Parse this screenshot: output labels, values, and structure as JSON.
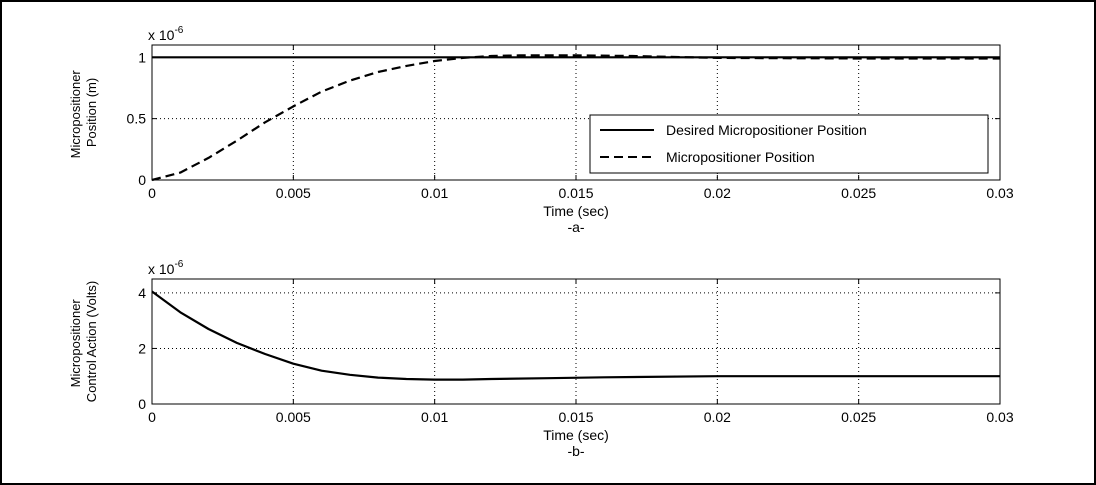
{
  "chart_data": [
    {
      "type": "line",
      "id": "a",
      "title": "",
      "caption": "-a-",
      "xlabel": "Time (sec)",
      "ylabel_lines": [
        "Micropositioner",
        "Position (m)"
      ],
      "exponent_label": "x 10",
      "exponent_power": "-6",
      "xlim": [
        0,
        0.03
      ],
      "ylim": [
        0,
        1.1
      ],
      "xticks": [
        0,
        0.005,
        0.01,
        0.015,
        0.02,
        0.025,
        0.03
      ],
      "xtick_labels": [
        "0",
        "0.005",
        "0.01",
        "0.015",
        "0.02",
        "0.025",
        "0.03"
      ],
      "yticks": [
        0,
        0.5,
        1
      ],
      "ytick_labels": [
        "0",
        "0.5",
        "1"
      ],
      "grid": true,
      "legend_position": "right",
      "series": [
        {
          "name": "Desired Micropositioner Position",
          "style": "solid",
          "x": [
            0,
            0.03
          ],
          "y": [
            1,
            1
          ]
        },
        {
          "name": "Micropositioner Position",
          "style": "dashed",
          "x": [
            0,
            0.001,
            0.002,
            0.003,
            0.004,
            0.005,
            0.006,
            0.007,
            0.008,
            0.009,
            0.01,
            0.011,
            0.012,
            0.013,
            0.015,
            0.017,
            0.02,
            0.025,
            0.03
          ],
          "y": [
            0,
            0.06,
            0.18,
            0.32,
            0.47,
            0.6,
            0.72,
            0.81,
            0.88,
            0.93,
            0.97,
            0.995,
            1.01,
            1.015,
            1.015,
            1.01,
            0.995,
            0.99,
            0.99
          ]
        }
      ]
    },
    {
      "type": "line",
      "id": "b",
      "title": "",
      "caption": "-b-",
      "xlabel": "Time (sec)",
      "ylabel_lines": [
        "Micropositioner",
        "Control Action (Volts)"
      ],
      "exponent_label": "x 10",
      "exponent_power": "-6",
      "xlim": [
        0,
        0.03
      ],
      "ylim": [
        0,
        4.5
      ],
      "xticks": [
        0,
        0.005,
        0.01,
        0.015,
        0.02,
        0.025,
        0.03
      ],
      "xtick_labels": [
        "0",
        "0.005",
        "0.01",
        "0.015",
        "0.02",
        "0.025",
        "0.03"
      ],
      "yticks": [
        0,
        2,
        4
      ],
      "ytick_labels": [
        "0",
        "2",
        "4"
      ],
      "grid": true,
      "series": [
        {
          "name": "",
          "style": "solid",
          "x": [
            0,
            0.001,
            0.002,
            0.003,
            0.004,
            0.005,
            0.006,
            0.007,
            0.008,
            0.009,
            0.01,
            0.011,
            0.012,
            0.014,
            0.016,
            0.02,
            0.025,
            0.03
          ],
          "y": [
            4.05,
            3.3,
            2.7,
            2.2,
            1.8,
            1.45,
            1.2,
            1.05,
            0.95,
            0.9,
            0.88,
            0.88,
            0.9,
            0.93,
            0.96,
            1.0,
            1.0,
            1.0
          ]
        }
      ]
    }
  ]
}
